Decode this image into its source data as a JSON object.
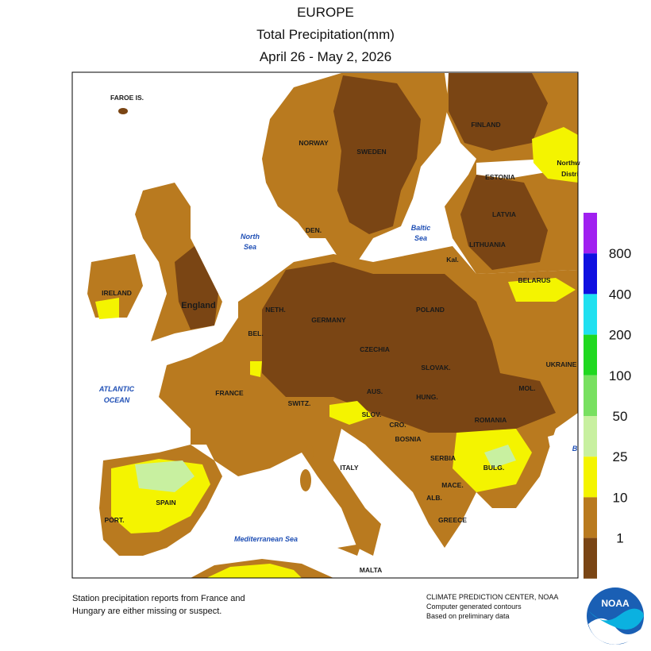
{
  "header": {
    "title": "EUROPE",
    "subtitle": "Total Precipitation(mm)",
    "dates": "April 26 - May 2, 2026"
  },
  "labels": [
    "FAROE IS.",
    "NORWAY",
    "SWEDEN",
    "FINLAND",
    "ESTONIA",
    "LATVIA",
    "LITHUANIA",
    "Kal.",
    "BELARUS",
    "DEN.",
    "IRELAND",
    "England",
    "NETH.",
    "BEL.",
    "GERMANY",
    "POLAND",
    "CZECHIA",
    "SLOVAK.",
    "UKRAINE",
    "FRANCE",
    "SWITZ.",
    "AUS.",
    "HUNG.",
    "MOL.",
    "ROMANIA",
    "SLOV.",
    "CRO.",
    "BOSNIA",
    "SERBIA",
    "BULG.",
    "ITALY",
    "MACE.",
    "ALB.",
    "GREECE",
    "SPAIN",
    "PORT.",
    "MALTA",
    "Northw",
    "Distri"
  ],
  "seas": [
    "North",
    "Sea",
    "Baltic",
    "Sea",
    "ATLANTIC",
    "OCEAN",
    "Mediterranean Sea",
    "B"
  ],
  "legend": [
    {
      "label": "800",
      "color": "#a020f0"
    },
    {
      "label": "400",
      "color": "#1010e0"
    },
    {
      "label": "200",
      "color": "#20e0f0"
    },
    {
      "label": "100",
      "color": "#20d820"
    },
    {
      "label": "50",
      "color": "#78e060"
    },
    {
      "label": "25",
      "color": "#c8f0a0"
    },
    {
      "label": "10",
      "color": "#f4f400"
    },
    {
      "label": "1",
      "color": "#b97a1f"
    },
    {
      "color": "#7a4514"
    }
  ],
  "footnote": [
    "Station precipitation reports from France and",
    "Hungary are either missing or suspect."
  ],
  "credit": [
    "CLIMATE PREDICTION CENTER, NOAA",
    "Computer generated contours",
    "Based on preliminary data"
  ],
  "logo": "NOAA"
}
